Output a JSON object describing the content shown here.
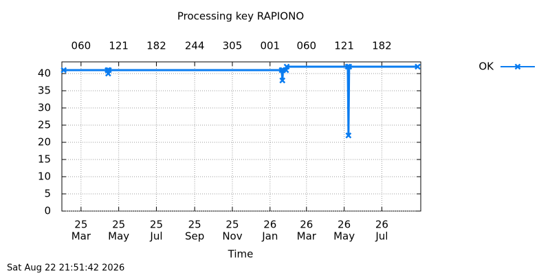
{
  "chart_data": {
    "type": "line",
    "title": "Processing key RAPIONO",
    "xlabel": "Time",
    "timestamp": "Sat Aug 22 21:51:42 2026",
    "xlim": [
      "2025-01-29",
      "2026-09-02"
    ],
    "ylim": [
      0,
      43.4
    ],
    "yticks": [
      0,
      5,
      10,
      15,
      20,
      25,
      30,
      35,
      40
    ],
    "xticks": [
      {
        "value": "2025-03-01",
        "label": [
          "25",
          "Mar"
        ]
      },
      {
        "value": "2025-05-01",
        "label": [
          "25",
          "May"
        ]
      },
      {
        "value": "2025-07-01",
        "label": [
          "25",
          "Jul"
        ]
      },
      {
        "value": "2025-09-01",
        "label": [
          "25",
          "Sep"
        ]
      },
      {
        "value": "2025-11-01",
        "label": [
          "25",
          "Nov"
        ]
      },
      {
        "value": "2026-01-01",
        "label": [
          "26",
          "Jan"
        ]
      },
      {
        "value": "2026-03-01",
        "label": [
          "26",
          "Mar"
        ]
      },
      {
        "value": "2026-05-01",
        "label": [
          "26",
          "May"
        ]
      },
      {
        "value": "2026-07-01",
        "label": [
          "26",
          "Jul"
        ]
      }
    ],
    "x2ticks": [
      {
        "value": "2025-03-01",
        "label": "060"
      },
      {
        "value": "2025-05-01",
        "label": "121"
      },
      {
        "value": "2025-07-01",
        "label": "182"
      },
      {
        "value": "2025-09-01",
        "label": "244"
      },
      {
        "value": "2025-11-01",
        "label": "305"
      },
      {
        "value": "2026-01-01",
        "label": "001"
      },
      {
        "value": "2026-03-01",
        "label": "060"
      },
      {
        "value": "2026-05-01",
        "label": "121"
      },
      {
        "value": "2026-07-01",
        "label": "182"
      }
    ],
    "grid": true,
    "legend": "right",
    "series": [
      {
        "name": "OK",
        "color": "#0a7cf0",
        "x": [
          "2025-02-01",
          "2025-04-13",
          "2025-04-14",
          "2025-04-15",
          "2026-01-20",
          "2026-01-21",
          "2026-01-22",
          "2026-01-27",
          "2026-01-28",
          "2026-05-07",
          "2026-05-08",
          "2026-05-09",
          "2026-08-28"
        ],
        "values": [
          41,
          41,
          40,
          41,
          41,
          38,
          41,
          41,
          42,
          42,
          22,
          42,
          42
        ]
      }
    ]
  }
}
